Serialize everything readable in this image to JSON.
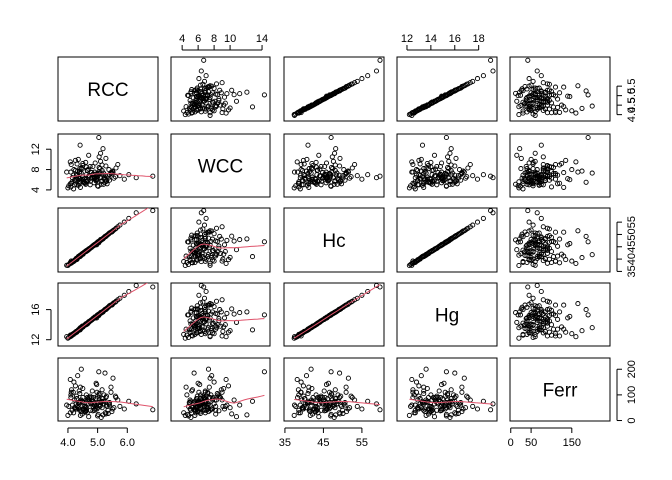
{
  "chart_data": {
    "type": "scatter",
    "variables": [
      "RCC",
      "WCC",
      "Hc",
      "Hg",
      "Ferr"
    ],
    "axis_ranges": {
      "RCC": [
        3.8,
        6.9
      ],
      "WCC": [
        3.1,
        14.5
      ],
      "Hc": [
        35.8,
        59.7
      ],
      "Hg": [
        11.5,
        19.2
      ],
      "Ferr": [
        8,
        234
      ]
    },
    "axis_ticks": {
      "RCC": {
        "ticks": [
          4.0,
          4.5,
          5.0,
          5.5,
          6.0
        ],
        "labels": [
          "4.0",
          "4.5",
          "5.0",
          "5.5",
          "6.0"
        ]
      },
      "WCC": {
        "ticks": [
          4,
          6,
          8,
          10,
          12,
          14
        ],
        "labels": [
          "4",
          "6",
          "8",
          "10",
          "12",
          "14"
        ]
      },
      "Hc": {
        "ticks": [
          35,
          40,
          45,
          50,
          55,
          60
        ],
        "labels": [
          "35",
          "40",
          "45",
          "50",
          "55",
          "60"
        ]
      },
      "Hg": {
        "ticks": [
          12,
          14,
          16,
          18
        ],
        "labels": [
          "12",
          "14",
          "16",
          "18"
        ]
      },
      "Ferr": {
        "ticks": [
          0,
          50,
          100,
          150,
          200
        ],
        "labels": [
          "0",
          "50",
          "100",
          "150",
          "200"
        ]
      }
    },
    "top_axis_ticks": {
      "WCC": [
        "4",
        "6",
        "8",
        "10",
        "14"
      ],
      "Hg": [
        "12",
        "14",
        "16",
        "18"
      ]
    },
    "right_axis_ticks": {
      "RCC": [
        "4.0",
        "4.5",
        "5.0",
        "5.5"
      ],
      "Hc": [
        "35",
        "40",
        "45",
        "50",
        "55"
      ],
      "Ferr": [
        "0",
        "100",
        "200"
      ]
    },
    "left_axis_ticks": {
      "WCC": [
        "4",
        "8",
        "12"
      ],
      "Hg": [
        "12",
        "16"
      ]
    },
    "bottom_axis_ticks": {
      "RCC": [
        "4.0",
        "5.0",
        "6.0"
      ],
      "Hc": [
        "35",
        "45",
        "55"
      ],
      "Ferr": [
        "0",
        "50",
        "150"
      ]
    },
    "lower_panels_smoother": true,
    "smoother_color": "#DF536B",
    "point_style": "open circle",
    "observations": {
      "RCC": [
        3.96,
        4.41,
        4.14,
        4.11,
        4.45,
        4.1,
        4.31,
        4.42,
        4.3,
        4.51,
        4.62,
        5.04,
        4.97,
        4.35,
        4.19,
        4.3,
        4.38,
        4.29,
        4.4,
        4.12,
        4.03,
        4.5,
        4.25,
        4.22,
        4.08,
        4.6,
        4.35,
        4.4,
        4.25,
        4.5,
        4.15,
        4.38,
        4.62,
        4.3,
        4.2,
        4.55,
        4.72,
        4.4,
        4.1,
        4.28,
        4.65,
        4.5,
        4.35,
        4.8,
        4.22,
        4.45,
        4.18,
        4.6,
        4.9,
        4.33,
        4.55,
        4.75,
        4.4,
        4.85,
        4.95,
        4.25,
        4.7,
        4.58,
        4.65,
        4.48,
        4.82,
        4.52,
        4.7,
        4.88,
        4.45,
        4.75,
        4.6,
        5.0,
        4.9,
        4.68,
        4.78,
        5.05,
        4.62,
        4.85,
        4.95,
        5.1,
        4.72,
        4.88,
        4.98,
        4.82,
        5.15,
        4.95,
        5.05,
        4.9,
        5.2,
        5.0,
        4.86,
        5.1,
        5.25,
        5.02,
        4.92,
        5.15,
        5.3,
        5.08,
        4.98,
        5.2,
        5.12,
        5.35,
        5.05,
        5.22,
        5.4,
        5.15,
        5.28,
        5.1,
        5.45,
        5.32,
        5.18,
        5.5,
        5.25,
        5.38,
        5.6,
        5.3,
        5.45,
        5.55,
        5.68,
        5.4,
        5.52,
        5.75,
        5.62,
        5.9,
        6.05,
        6.3,
        4.0,
        4.08,
        4.48,
        4.7,
        5.0,
        5.18,
        5.36,
        5.48,
        4.76,
        4.92,
        5.12,
        5.28,
        4.56,
        4.84,
        5.02,
        5.26,
        6.86,
        4.42,
        4.66,
        5.04
      ],
      "WCC": [
        7.5,
        12.8,
        5.6,
        9.0,
        5.9,
        7.5,
        9.1,
        4.5,
        5.0,
        6.0,
        8.5,
        7.2,
        6.2,
        10.0,
        4.2,
        6.8,
        5.5,
        7.0,
        8.2,
        5.3,
        4.8,
        6.5,
        7.8,
        5.0,
        9.5,
        6.0,
        4.9,
        7.2,
        5.8,
        8.8,
        6.4,
        5.2,
        7.0,
        6.3,
        8.0,
        5.4,
        6.8,
        7.6,
        4.6,
        6.1,
        5.7,
        9.2,
        6.6,
        7.4,
        5.9,
        8.3,
        6.9,
        5.1,
        6.4,
        7.7,
        5.6,
        8.6,
        6.2,
        7.1,
        5.8,
        9.8,
        6.7,
        5.3,
        7.9,
        6.1,
        6.9,
        5.5,
        8.1,
        6.4,
        7.3,
        5.0,
        9.4,
        6.6,
        7.5,
        5.9,
        6.3,
        8.4,
        5.7,
        7.0,
        6.0,
        11.2,
        6.8,
        5.4,
        7.2,
        6.5,
        8.9,
        5.8,
        7.6,
        6.2,
        5.1,
        7.1,
        6.7,
        9.6,
        5.5,
        6.9,
        6.4,
        7.8,
        5.9,
        8.2,
        6.1,
        7.3,
        5.6,
        6.8,
        10.5,
        6.3,
        7.0,
        5.8,
        8.7,
        6.5,
        7.4,
        5.2,
        6.9,
        7.7,
        6.0,
        8.0,
        6.6,
        5.7,
        7.2,
        6.3,
        9.0,
        5.9,
        7.5,
        6.8,
        8.3,
        6.1,
        7.0,
        6.4,
        4.4,
        5.2,
        8.2,
        10.8,
        4.8,
        12.1,
        6.3,
        7.3,
        5.7,
        9.3,
        5.1,
        10.2,
        6.2,
        8.6,
        4.7,
        6.9,
        6.7,
        5.6,
        7.8,
        14.3
      ],
      "Hc": [
        37.5,
        41.0,
        38.6,
        39.2,
        41.5,
        38.3,
        40.0,
        41.2,
        39.8,
        42.0,
        43.1,
        46.6,
        45.8,
        40.7,
        39.0,
        40.2,
        41.0,
        39.9,
        41.3,
        38.5,
        37.8,
        42.1,
        39.6,
        39.4,
        38.2,
        43.0,
        40.8,
        41.0,
        39.7,
        42.3,
        39.0,
        41.2,
        43.3,
        40.1,
        39.2,
        42.8,
        44.2,
        41.4,
        38.6,
        40.3,
        43.6,
        42.0,
        41.0,
        44.8,
        39.5,
        41.9,
        39.1,
        43.2,
        45.9,
        40.6,
        42.7,
        44.4,
        41.3,
        45.4,
        46.1,
        39.8,
        44.0,
        43.0,
        43.5,
        42.1,
        45.2,
        42.5,
        44.1,
        45.6,
        41.8,
        44.4,
        43.1,
        46.8,
        45.7,
        43.9,
        44.8,
        47.1,
        43.4,
        45.5,
        46.3,
        47.9,
        44.2,
        45.7,
        46.5,
        45.1,
        48.1,
        46.3,
        47.2,
        45.9,
        48.6,
        46.8,
        45.4,
        47.6,
        49.2,
        46.9,
        46.0,
        48.1,
        49.5,
        47.4,
        46.6,
        48.5,
        47.9,
        50.0,
        47.3,
        48.8,
        50.6,
        48.0,
        49.2,
        47.6,
        50.9,
        49.7,
        48.3,
        51.4,
        49.0,
        50.3,
        52.2,
        49.5,
        50.9,
        51.8,
        53.1,
        50.6,
        51.5,
        53.8,
        52.5,
        55.0,
        56.5,
        58.8,
        37.4,
        38.6,
        42.2,
        43.8,
        46.9,
        48.2,
        50.1,
        51.0,
        44.5,
        45.8,
        47.8,
        49.3,
        42.8,
        45.3,
        47.0,
        49.1,
        59.7,
        41.6,
        43.4,
        47.0
      ],
      "Hg": [
        12.4,
        13.3,
        12.7,
        12.5,
        13.5,
        12.5,
        13.1,
        13.4,
        13.0,
        13.7,
        14.0,
        15.2,
        14.9,
        13.2,
        12.7,
        13.1,
        13.4,
        13.0,
        13.4,
        12.5,
        12.3,
        13.7,
        12.9,
        12.9,
        12.4,
        14.0,
        13.3,
        13.4,
        12.9,
        13.8,
        12.7,
        13.4,
        14.1,
        13.1,
        12.8,
        13.9,
        14.4,
        13.5,
        12.6,
        13.1,
        14.2,
        13.7,
        13.3,
        14.6,
        12.9,
        13.6,
        12.8,
        14.1,
        14.9,
        13.2,
        13.9,
        14.5,
        13.5,
        14.8,
        15.0,
        13.0,
        14.3,
        14.0,
        14.2,
        13.7,
        14.7,
        13.8,
        14.4,
        14.9,
        13.6,
        14.5,
        14.0,
        15.2,
        14.9,
        14.3,
        14.6,
        15.4,
        14.1,
        14.8,
        15.1,
        15.6,
        14.4,
        14.9,
        15.2,
        14.7,
        15.7,
        15.1,
        15.4,
        15.0,
        15.8,
        15.3,
        14.8,
        15.5,
        16.0,
        15.3,
        15.0,
        15.7,
        16.1,
        15.5,
        15.2,
        15.8,
        15.6,
        16.3,
        15.4,
        15.9,
        16.5,
        15.6,
        16.0,
        15.5,
        16.6,
        16.2,
        15.7,
        16.7,
        16.0,
        16.4,
        17.0,
        16.1,
        16.6,
        16.9,
        17.3,
        16.5,
        16.8,
        17.5,
        17.1,
        17.9,
        18.4,
        19.2,
        12.2,
        12.6,
        13.8,
        14.3,
        15.3,
        15.7,
        16.3,
        16.6,
        14.5,
        14.9,
        15.6,
        16.1,
        13.9,
        14.8,
        15.3,
        16.0,
        19.0,
        13.6,
        14.1,
        15.3
      ],
      "Ferr": [
        60,
        75,
        40,
        110,
        35,
        90,
        55,
        130,
        45,
        70,
        100,
        60,
        140,
        50,
        30,
        85,
        65,
        95,
        40,
        120,
        55,
        75,
        45,
        80,
        160,
        35,
        70,
        105,
        50,
        90,
        60,
        115,
        40,
        85,
        150,
        55,
        75,
        45,
        100,
        65,
        30,
        125,
        70,
        90,
        50,
        80,
        110,
        40,
        60,
        175,
        45,
        95,
        70,
        55,
        85,
        135,
        65,
        50,
        90,
        75,
        115,
        45,
        80,
        60,
        200,
        70,
        55,
        95,
        40,
        85,
        65,
        105,
        50,
        75,
        145,
        60,
        90,
        70,
        45,
        80,
        120,
        55,
        100,
        65,
        75,
        50,
        90,
        60,
        185,
        70,
        45,
        85,
        95,
        55,
        110,
        65,
        75,
        40,
        80,
        100,
        60,
        50,
        90,
        70,
        130,
        55,
        85,
        45,
        75,
        65,
        95,
        60,
        110,
        50,
        80,
        70,
        165,
        55,
        90,
        45,
        75,
        65,
        20,
        30,
        25,
        15,
        18,
        22,
        28,
        35,
        40,
        45,
        12,
        26,
        33,
        38,
        24,
        30,
        42,
        20,
        80,
        190,
        210,
        95
      ]
    }
  }
}
